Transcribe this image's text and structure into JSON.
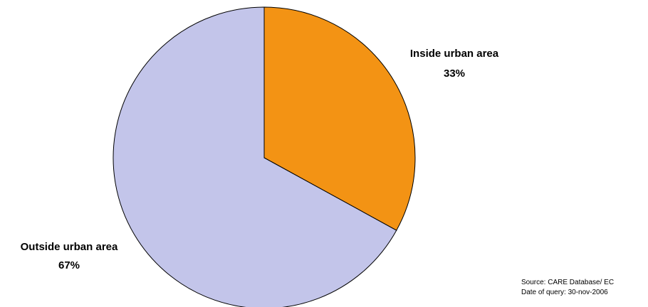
{
  "chart_data": {
    "type": "pie",
    "title": "",
    "start_angle_deg": 0,
    "direction": "clockwise",
    "slices": [
      {
        "label": "Inside urban area",
        "value": 33,
        "value_label": "33%",
        "color": "#F39314"
      },
      {
        "label": "Outside urban area",
        "value": 67,
        "value_label": "67%",
        "color": "#C3C5EA"
      }
    ],
    "stroke_color": "#000000"
  },
  "footer": {
    "source": "Source: CARE Database/ EC",
    "query_date": "Date of query: 30-nov-2006"
  }
}
